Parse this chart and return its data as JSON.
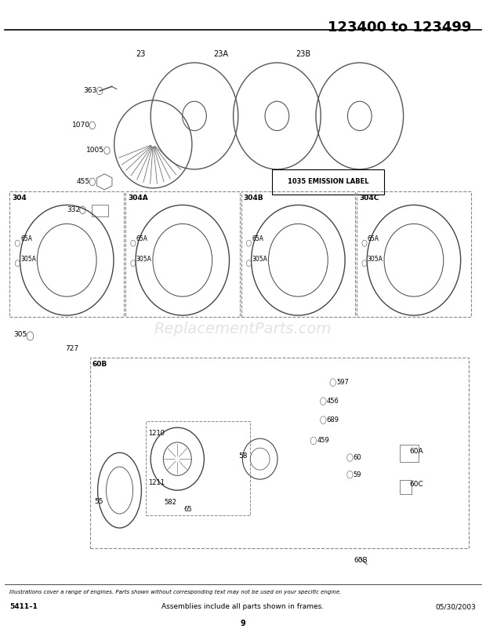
{
  "title": "123400 to 123499",
  "background_color": "#ffffff",
  "footer_italic": "Illustrations cover a range of engines. Parts shown without corresponding text may not be used on your specific engine.",
  "footer_left": "5411–1",
  "footer_center": "Assemblies include all parts shown in frames.",
  "footer_right": "05/30/2003",
  "footer_page": "9",
  "emission_label": "1035 EMISSION LABEL"
}
